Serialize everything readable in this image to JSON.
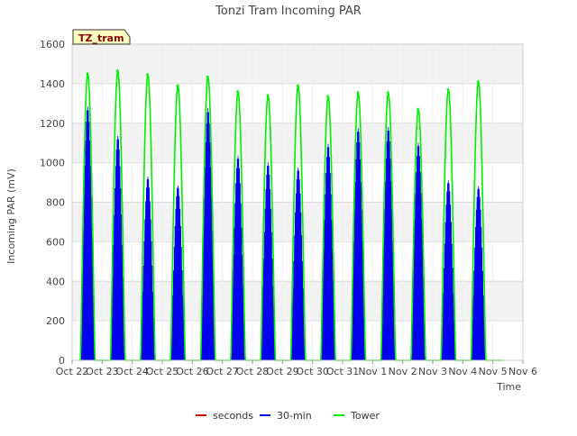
{
  "chart_data": {
    "type": "line",
    "title": "Tonzi Tram Incoming PAR",
    "xlabel": "Time",
    "ylabel": "Incoming PAR (mV)",
    "annotation": "TZ_tram",
    "ylim": [
      0,
      1600
    ],
    "yticks": [
      0,
      200,
      400,
      600,
      800,
      1000,
      1200,
      1400,
      1600
    ],
    "xlim": [
      0,
      15
    ],
    "xticks": [
      {
        "x": 0,
        "label": "Oct 22"
      },
      {
        "x": 1,
        "label": "Oct 23"
      },
      {
        "x": 2,
        "label": "Oct 24"
      },
      {
        "x": 3,
        "label": "Oct 25"
      },
      {
        "x": 4,
        "label": "Oct 26"
      },
      {
        "x": 5,
        "label": "Oct 27"
      },
      {
        "x": 6,
        "label": "Oct 28"
      },
      {
        "x": 7,
        "label": "Oct 29"
      },
      {
        "x": 8,
        "label": "Oct 30"
      },
      {
        "x": 9,
        "label": "Oct 31"
      },
      {
        "x": 10,
        "label": "Nov 1"
      },
      {
        "x": 11,
        "label": "Nov 2"
      },
      {
        "x": 12,
        "label": "Nov 3"
      },
      {
        "x": 13,
        "label": "Nov 4"
      },
      {
        "x": 14,
        "label": "Nov 5"
      },
      {
        "x": 15,
        "label": "Nov 6"
      }
    ],
    "grid": true,
    "legend_position": "bottom-center",
    "series": [
      {
        "name": "seconds",
        "color": "#cc0000",
        "peaks": []
      },
      {
        "name": "30-min",
        "color": "#0000ee",
        "peaks": [
          1285,
          1135,
          930,
          885,
          1275,
          1035,
          1000,
          975,
          1095,
          1175,
          1180,
          1100,
          910,
          880
        ]
      },
      {
        "name": "Tower",
        "color": "#00ee00",
        "peaks": [
          1450,
          1465,
          1445,
          1390,
          1435,
          1360,
          1340,
          1390,
          1335,
          1355,
          1355,
          1270,
          1370,
          1410
        ]
      }
    ]
  }
}
